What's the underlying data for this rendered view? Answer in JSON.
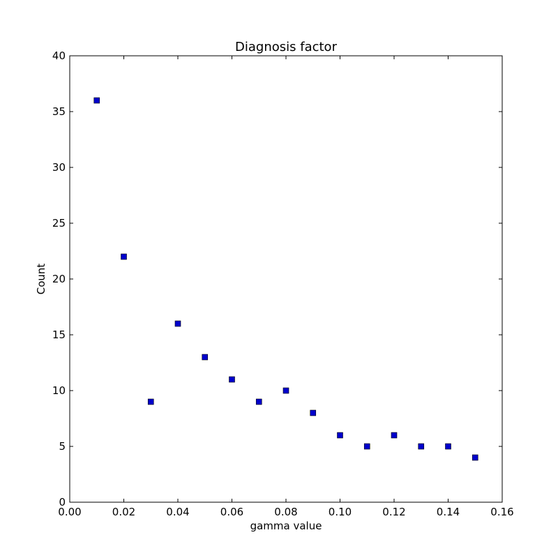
{
  "chart_data": {
    "type": "scatter",
    "title": "Diagnosis factor",
    "xlabel": "gamma value",
    "ylabel": "Count",
    "xlim": [
      0.0,
      0.16
    ],
    "ylim": [
      0,
      40
    ],
    "x_ticks": [
      "0.00",
      "0.02",
      "0.04",
      "0.06",
      "0.08",
      "0.10",
      "0.12",
      "0.14",
      "0.16"
    ],
    "y_ticks": [
      "0",
      "5",
      "10",
      "15",
      "20",
      "25",
      "30",
      "35",
      "40"
    ],
    "grid": false,
    "legend": "none",
    "series": [
      {
        "marker": "square",
        "color": "#0000cc",
        "x": [
          0.01,
          0.02,
          0.03,
          0.04,
          0.05,
          0.06,
          0.07,
          0.08,
          0.09,
          0.1,
          0.11,
          0.12,
          0.13,
          0.14,
          0.15
        ],
        "y": [
          36,
          22,
          9,
          16,
          13,
          11,
          9,
          10,
          8,
          6,
          5,
          6,
          5,
          5,
          4
        ]
      }
    ]
  }
}
